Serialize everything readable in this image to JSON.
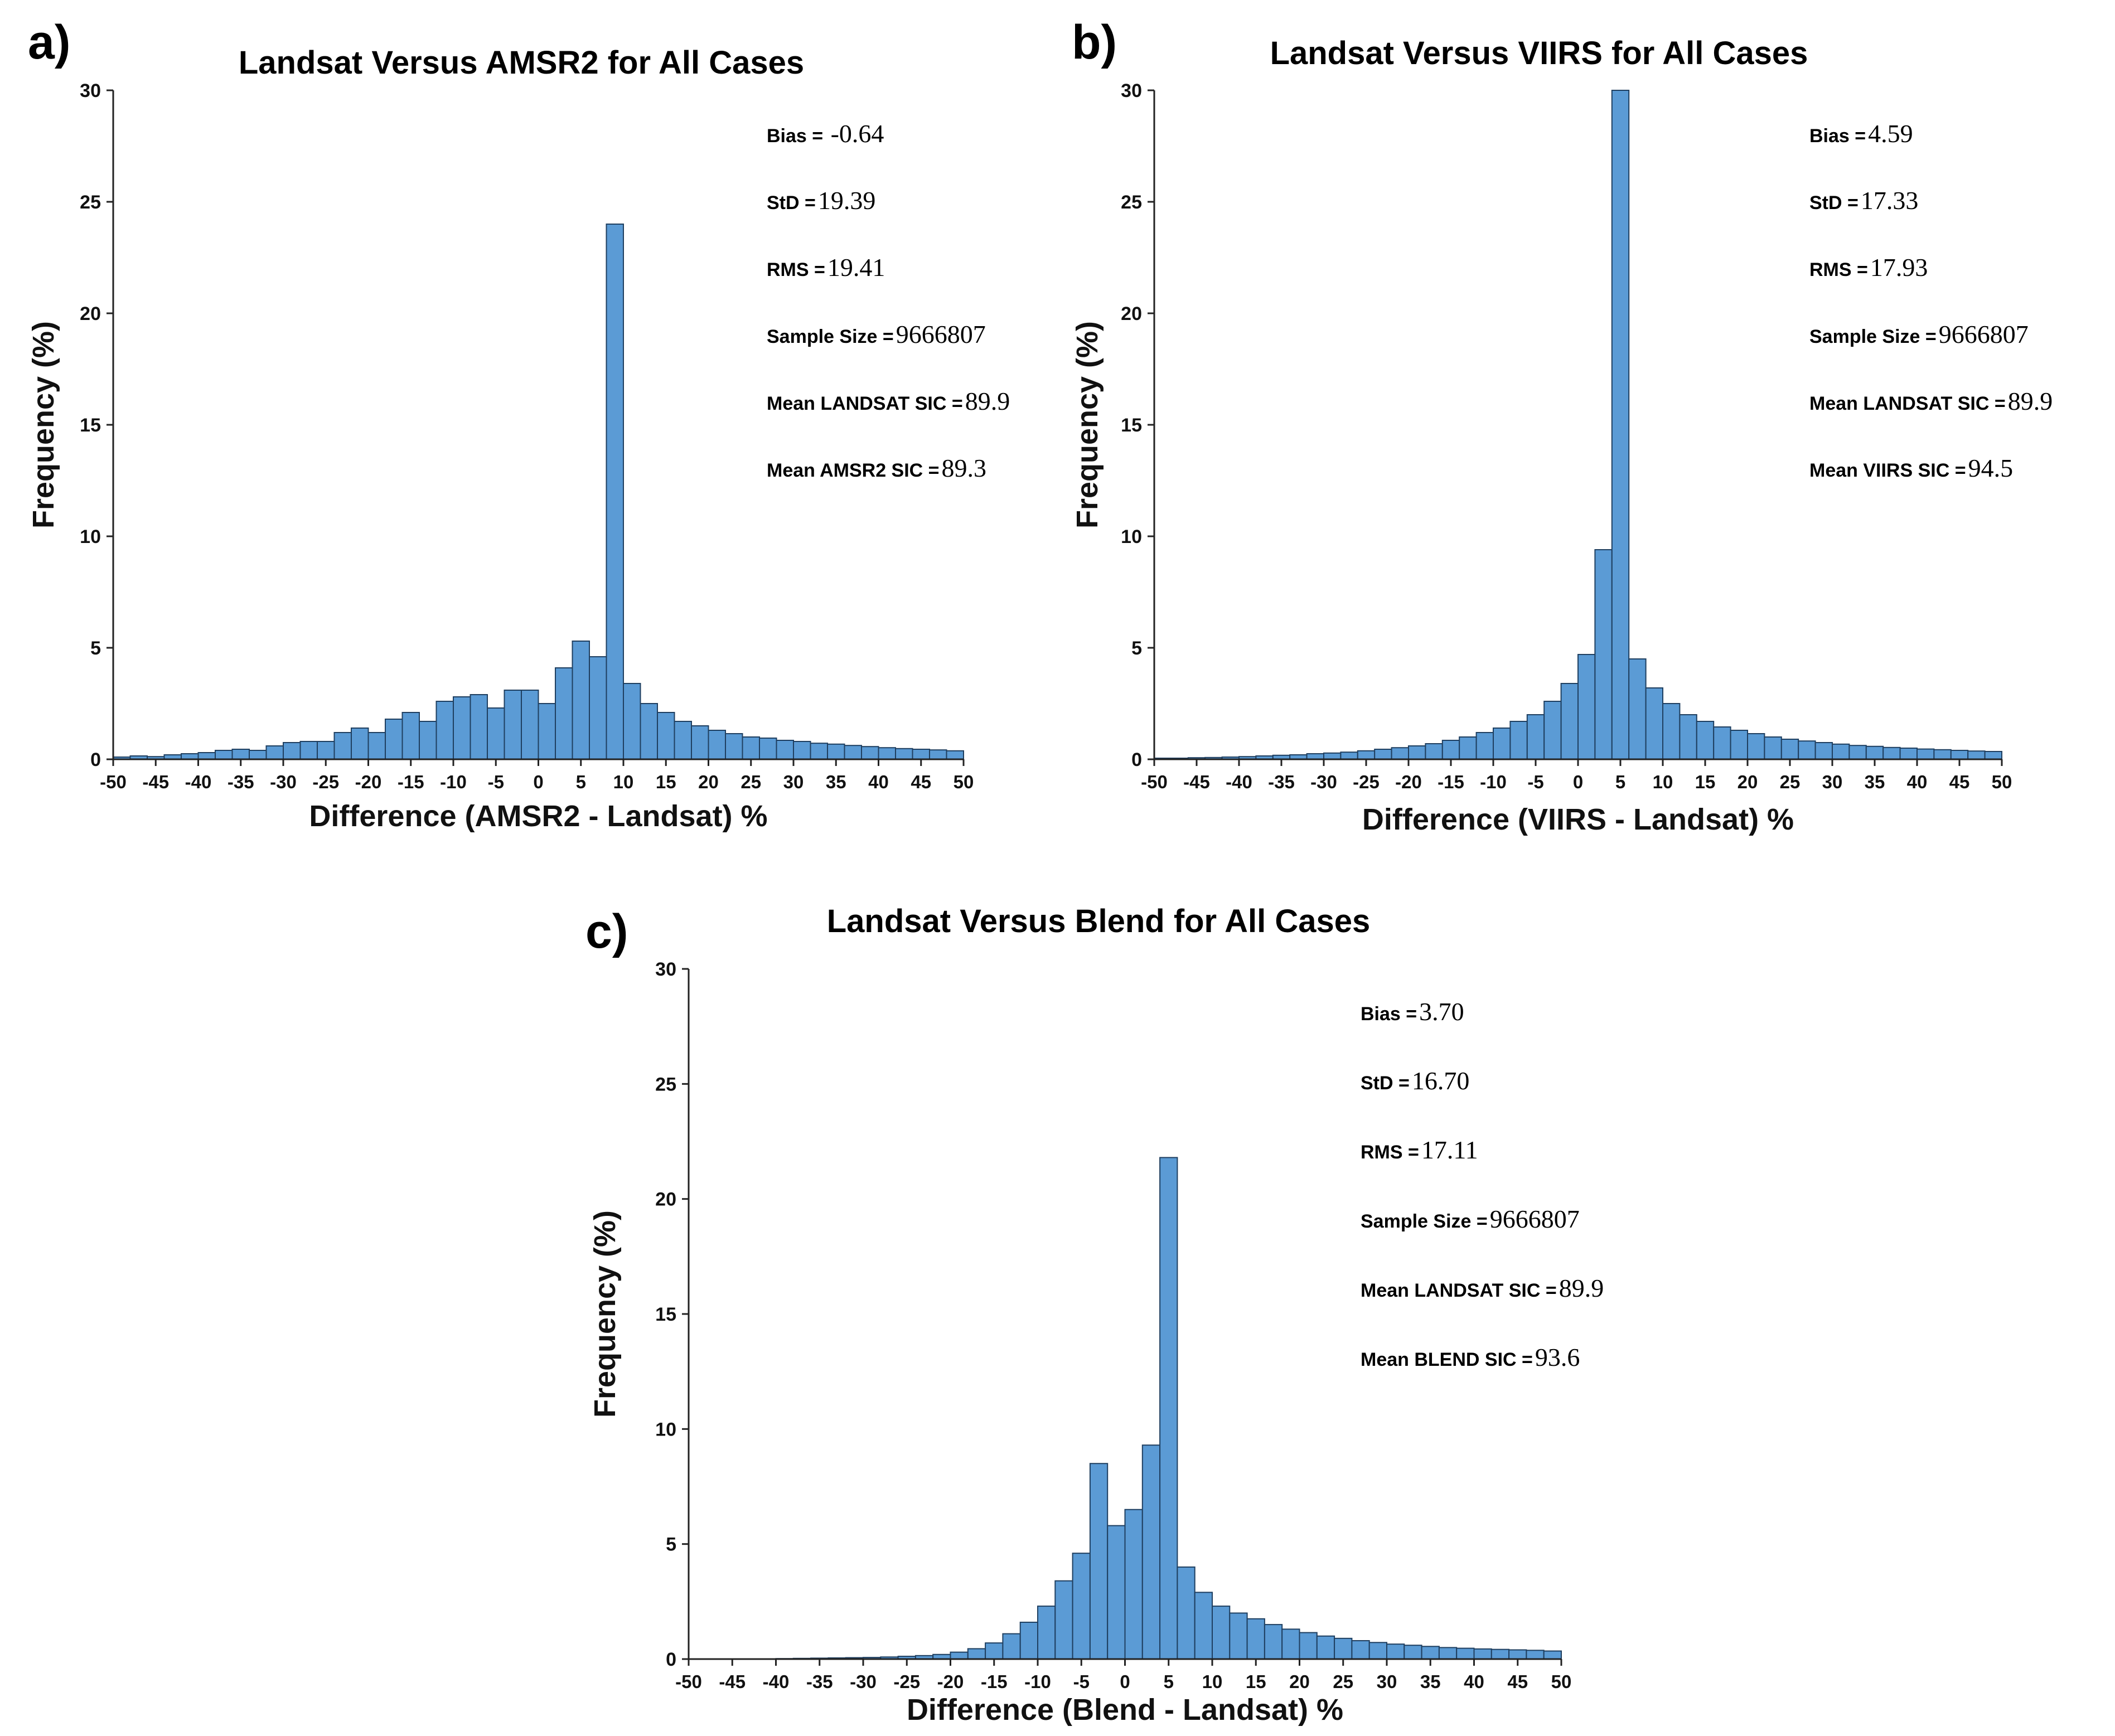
{
  "chart_data": [
    {
      "type": "bar",
      "panel_label": "a)",
      "title": "Landsat Versus AMSR2 for All Cases",
      "xlabel": "Difference (AMSR2 - Landsat) %",
      "ylabel": "Frequency (%)",
      "xlim": [
        -50,
        50
      ],
      "ylim": [
        0,
        30
      ],
      "xticks": [
        "-50",
        "-45",
        "-40",
        "-35",
        "-30",
        "-25",
        "-20",
        "-15",
        "-10",
        "-5",
        "0",
        "5",
        "10",
        "15",
        "20",
        "25",
        "30",
        "35",
        "40",
        "45",
        "50"
      ],
      "yticks": [
        "0",
        "5",
        "10",
        "15",
        "20",
        "25",
        "30"
      ],
      "bin_width": 2,
      "bin_starts": [
        -50,
        -48,
        -46,
        -44,
        -42,
        -40,
        -38,
        -36,
        -34,
        -32,
        -30,
        -28,
        -26,
        -24,
        -22,
        -20,
        -18,
        -16,
        -14,
        -12,
        -10,
        -8,
        -6,
        -4,
        -2,
        0,
        2,
        4,
        6,
        8,
        10,
        12,
        14,
        16,
        18,
        20,
        22,
        24,
        26,
        28,
        30,
        32,
        34,
        36,
        38,
        40,
        42,
        44,
        46,
        48
      ],
      "values": [
        0.1,
        0.15,
        0.12,
        0.2,
        0.25,
        0.3,
        0.4,
        0.45,
        0.4,
        0.6,
        0.75,
        0.8,
        0.8,
        1.2,
        1.4,
        1.2,
        1.8,
        2.1,
        1.7,
        2.6,
        2.8,
        2.9,
        2.3,
        3.1,
        3.1,
        2.5,
        4.1,
        5.3,
        4.6,
        24.0,
        3.4,
        2.5,
        2.1,
        1.7,
        1.5,
        1.3,
        1.15,
        1.0,
        0.95,
        0.85,
        0.8,
        0.72,
        0.68,
        0.62,
        0.57,
        0.52,
        0.48,
        0.45,
        0.42,
        0.38
      ],
      "stats": [
        {
          "key": "Bias = ",
          "value": "-0.64"
        },
        {
          "key": "StD =",
          "value": "19.39"
        },
        {
          "key": "RMS =",
          "value": "19.41"
        },
        {
          "key": "Sample Size =",
          "value": "9666807"
        },
        {
          "key": "Mean LANDSAT SIC =",
          "value": "89.9"
        },
        {
          "key": "Mean AMSR2 SIC =",
          "value": "89.3"
        }
      ]
    },
    {
      "type": "bar",
      "panel_label": "b)",
      "title": "Landsat Versus VIIRS for All Cases",
      "xlabel": "Difference (VIIRS - Landsat) %",
      "ylabel": "Frequency (%)",
      "xlim": [
        -50,
        50
      ],
      "ylim": [
        0,
        30
      ],
      "xticks": [
        "-50",
        "-45",
        "-40",
        "-35",
        "-30",
        "-25",
        "-20",
        "-15",
        "-10",
        "-5",
        "0",
        "5",
        "10",
        "15",
        "20",
        "25",
        "30",
        "35",
        "40",
        "45",
        "50"
      ],
      "yticks": [
        "0",
        "5",
        "10",
        "15",
        "20",
        "25",
        "30"
      ],
      "bin_width": 2,
      "bin_starts": [
        -50,
        -48,
        -46,
        -44,
        -42,
        -40,
        -38,
        -36,
        -34,
        -32,
        -30,
        -28,
        -26,
        -24,
        -22,
        -20,
        -18,
        -16,
        -14,
        -12,
        -10,
        -8,
        -6,
        -4,
        -2,
        0,
        2,
        4,
        6,
        8,
        10,
        12,
        14,
        16,
        18,
        20,
        22,
        24,
        26,
        28,
        30,
        32,
        34,
        36,
        38,
        40,
        42,
        44,
        46,
        48
      ],
      "values": [
        0.05,
        0.05,
        0.07,
        0.08,
        0.1,
        0.12,
        0.15,
        0.18,
        0.2,
        0.25,
        0.28,
        0.32,
        0.38,
        0.45,
        0.52,
        0.6,
        0.7,
        0.85,
        1.0,
        1.2,
        1.4,
        1.7,
        2.0,
        2.6,
        3.4,
        4.7,
        9.4,
        30.0,
        4.5,
        3.2,
        2.5,
        2.0,
        1.7,
        1.45,
        1.3,
        1.15,
        1.0,
        0.9,
        0.82,
        0.75,
        0.68,
        0.62,
        0.58,
        0.53,
        0.5,
        0.46,
        0.43,
        0.4,
        0.37,
        0.35
      ],
      "stats": [
        {
          "key": "Bias =",
          "value": "4.59"
        },
        {
          "key": "StD =",
          "value": "17.33"
        },
        {
          "key": "RMS =",
          "value": "17.93"
        },
        {
          "key": "Sample Size =",
          "value": "9666807"
        },
        {
          "key": "Mean LANDSAT SIC =",
          "value": "89.9"
        },
        {
          "key": "Mean VIIRS SIC =",
          "value": "94.5"
        }
      ]
    },
    {
      "type": "bar",
      "panel_label": "c)",
      "title": "Landsat Versus Blend for All Cases",
      "xlabel": "Difference (Blend - Landsat) %",
      "ylabel": "Frequency (%)",
      "xlim": [
        -50,
        50
      ],
      "ylim": [
        0,
        30
      ],
      "xticks": [
        "-50",
        "-45",
        "-40",
        "-35",
        "-30",
        "-25",
        "-20",
        "-15",
        "-10",
        "-5",
        "0",
        "5",
        "10",
        "15",
        "20",
        "25",
        "30",
        "35",
        "40",
        "45",
        "50"
      ],
      "yticks": [
        "0",
        "5",
        "10",
        "15",
        "20",
        "25",
        "30"
      ],
      "bin_width": 2,
      "bin_starts": [
        -50,
        -48,
        -46,
        -44,
        -42,
        -40,
        -38,
        -36,
        -34,
        -32,
        -30,
        -28,
        -26,
        -24,
        -22,
        -20,
        -18,
        -16,
        -14,
        -12,
        -10,
        -8,
        -6,
        -4,
        -2,
        0,
        2,
        4,
        6,
        8,
        10,
        12,
        14,
        16,
        18,
        20,
        22,
        24,
        26,
        28,
        30,
        32,
        34,
        36,
        38,
        40,
        42,
        44,
        46,
        48
      ],
      "values": [
        0,
        0,
        0,
        0,
        0,
        0.02,
        0.03,
        0.04,
        0.05,
        0.06,
        0.07,
        0.09,
        0.12,
        0.15,
        0.2,
        0.3,
        0.45,
        0.7,
        1.1,
        1.6,
        2.3,
        3.4,
        4.6,
        8.5,
        5.8,
        6.5,
        9.3,
        21.8,
        4.0,
        2.9,
        2.3,
        2.0,
        1.75,
        1.5,
        1.3,
        1.15,
        1.0,
        0.9,
        0.8,
        0.72,
        0.65,
        0.6,
        0.55,
        0.5,
        0.47,
        0.44,
        0.42,
        0.4,
        0.38,
        0.35
      ],
      "stats": [
        {
          "key": "Bias =",
          "value": "3.70"
        },
        {
          "key": "StD =",
          "value": "16.70"
        },
        {
          "key": "RMS =",
          "value": "17.11"
        },
        {
          "key": "Sample Size =",
          "value": "9666807"
        },
        {
          "key": "Mean LANDSAT SIC =",
          "value": "89.9"
        },
        {
          "key": "Mean BLEND SIC =",
          "value": "93.6"
        }
      ]
    }
  ]
}
